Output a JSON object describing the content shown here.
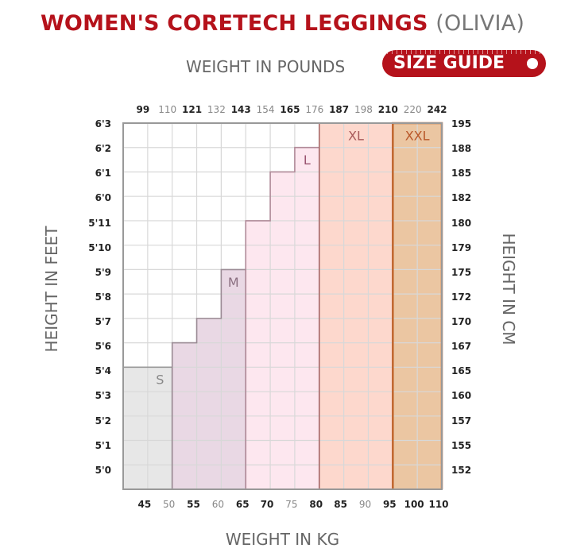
{
  "header": {
    "title_main": "WOMEN'S CORETECH LEGGINGS",
    "title_sub": "(OLIVIA)",
    "weight_lbs_label": "WEIGHT IN POUNDS",
    "size_guide_badge": "SIZE GUIDE"
  },
  "axes": {
    "left_title": "HEIGHT IN FEET",
    "right_title": "HEIGHT IN CM",
    "bottom_title": "WEIGHT IN KG"
  },
  "lbs_ticks": [
    "99",
    "110",
    "121",
    "132",
    "143",
    "154",
    "165",
    "176",
    "187",
    "198",
    "210",
    "220",
    "242"
  ],
  "kg_ticks": [
    "45",
    "50",
    "55",
    "60",
    "65",
    "70",
    "75",
    "80",
    "85",
    "90",
    "95",
    "100",
    "110"
  ],
  "feet_ticks": [
    "6'3",
    "6'2",
    "6'1",
    "6'0",
    "5'11",
    "5'10",
    "5'9",
    "5'8",
    "5'7",
    "5'6",
    "5'4",
    "5'3",
    "5'2",
    "5'1",
    "5'0"
  ],
  "cm_ticks": [
    "195",
    "188",
    "185",
    "182",
    "180",
    "179",
    "175",
    "172",
    "170",
    "167",
    "165",
    "160",
    "157",
    "155",
    "152"
  ],
  "sizes": [
    {
      "label": "S",
      "fill": "#e7e7e7",
      "stroke": "#999999",
      "text": "#888888",
      "max_kg": "50",
      "max_height": "5'4"
    },
    {
      "label": "M",
      "fill": "#e9d8e4",
      "stroke": "#9a8a94",
      "text": "#8a6f80",
      "max_kg": "65",
      "max_height": "5'9"
    },
    {
      "label": "L",
      "fill": "#fde7ef",
      "stroke": "#b08a98",
      "text": "#9a5570",
      "max_kg": "80",
      "max_height": "6'2"
    },
    {
      "label": "XL",
      "fill": "#fdd8cd",
      "stroke": "#a86a6a",
      "text": "#a85a5a",
      "max_kg": "95",
      "max_height": "6'3"
    },
    {
      "label": "XXL",
      "fill": "#ebc6a2",
      "stroke": "#c0662e",
      "text": "#b8582a",
      "max_kg": "110",
      "max_height": "6'3"
    }
  ],
  "colors": {
    "brand_red": "#b5121b",
    "grid": "#d8d8d8",
    "frame": "#999999"
  }
}
